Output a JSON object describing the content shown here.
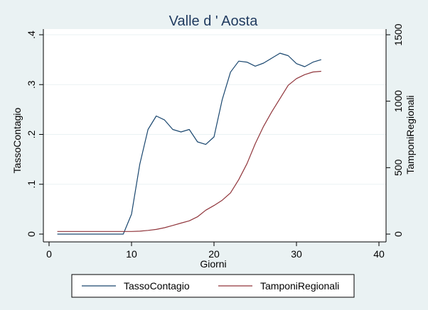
{
  "chart_data": {
    "type": "line",
    "title": "Valle d ' Aosta",
    "xlabel": "Giorni",
    "ylabel_left": "TassoContagio",
    "ylabel_right": "TamponiRegionali",
    "xlim": [
      0,
      40
    ],
    "ylim_left": [
      0,
      0.4
    ],
    "ylim_right": [
      0,
      1500
    ],
    "x_ticks": [
      0,
      10,
      20,
      30,
      40
    ],
    "x_tick_labels": [
      "0",
      "10",
      "20",
      "30",
      "40"
    ],
    "y_left_ticks": [
      0,
      0.1,
      0.2,
      0.3,
      0.4
    ],
    "y_left_tick_labels": [
      "0",
      ".1",
      ".2",
      ".3",
      ".4"
    ],
    "y_right_ticks": [
      0,
      500,
      1000,
      1500
    ],
    "y_right_tick_labels": [
      "0",
      "500",
      "1000",
      "1500"
    ],
    "grid": true,
    "legend_position": "bottom",
    "x": [
      1,
      2,
      3,
      4,
      5,
      6,
      7,
      8,
      9,
      10,
      11,
      12,
      13,
      14,
      15,
      16,
      17,
      18,
      19,
      20,
      21,
      22,
      23,
      24,
      25,
      26,
      27,
      28,
      29,
      30,
      31,
      32,
      33
    ],
    "series": [
      {
        "name": "TassoContagio",
        "axis": "left",
        "color": "#1a476f",
        "values": [
          0,
          0,
          0,
          0,
          0,
          0,
          0,
          0,
          0,
          0.04,
          0.14,
          0.21,
          0.237,
          0.229,
          0.21,
          0.205,
          0.21,
          0.185,
          0.18,
          0.195,
          0.27,
          0.325,
          0.347,
          0.345,
          0.337,
          0.343,
          0.353,
          0.363,
          0.358,
          0.342,
          0.336,
          0.345,
          0.35
        ]
      },
      {
        "name": "TamponiRegionali",
        "axis": "right",
        "color": "#90353b",
        "values": [
          20,
          20,
          20,
          20,
          20,
          20,
          20,
          20,
          20,
          20,
          22,
          28,
          35,
          48,
          65,
          83,
          100,
          130,
          180,
          215,
          255,
          310,
          410,
          530,
          680,
          810,
          920,
          1020,
          1120,
          1170,
          1200,
          1220,
          1225
        ]
      }
    ]
  }
}
